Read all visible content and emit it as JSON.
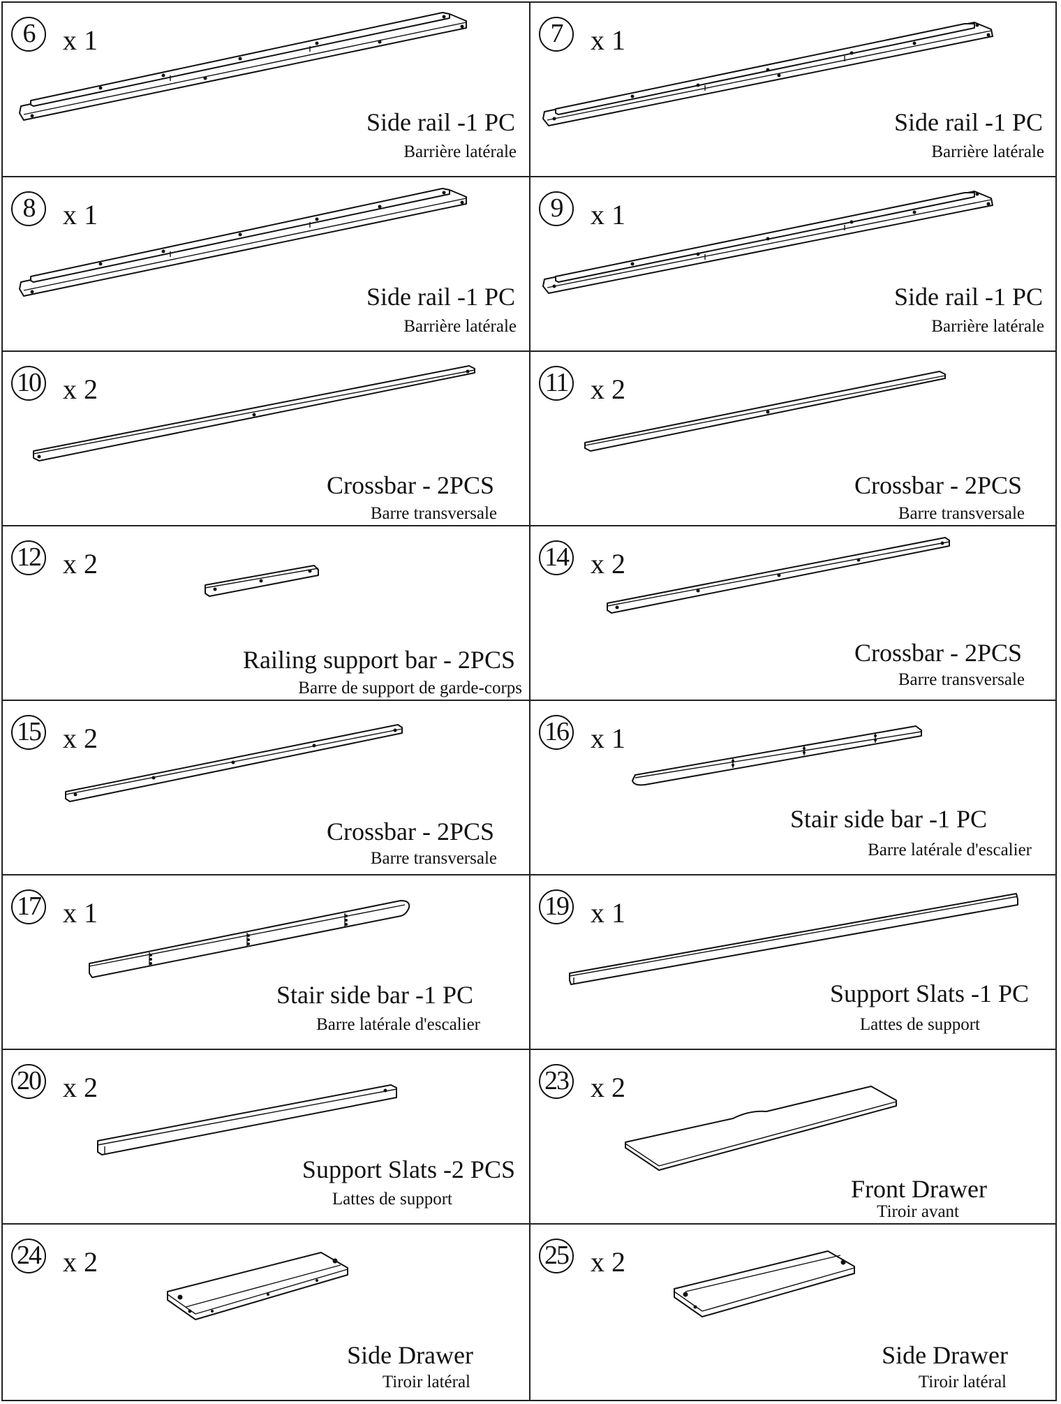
{
  "parts": [
    {
      "num": "6",
      "qty": "x 1",
      "en": "Side rail -1 PC",
      "fr": "Barrière latérale"
    },
    {
      "num": "7",
      "qty": "x 1",
      "en": "Side rail -1 PC",
      "fr": "Barrière latérale"
    },
    {
      "num": "8",
      "qty": "x 1",
      "en": "Side rail -1 PC",
      "fr": "Barrière latérale"
    },
    {
      "num": "9",
      "qty": "x 1",
      "en": "Side rail -1 PC",
      "fr": "Barrière latérale"
    },
    {
      "num": "10",
      "qty": "x 2",
      "en": "Crossbar - 2PCS",
      "fr": "Barre transversale"
    },
    {
      "num": "11",
      "qty": "x 2",
      "en": "Crossbar - 2PCS",
      "fr": "Barre transversale"
    },
    {
      "num": "12",
      "qty": "x 2",
      "en": "Railing support bar - 2PCS",
      "fr": "Barre de support de garde-corps"
    },
    {
      "num": "14",
      "qty": "x 2",
      "en": "Crossbar - 2PCS",
      "fr": "Barre transversale"
    },
    {
      "num": "15",
      "qty": "x 2",
      "en": "Crossbar - 2PCS",
      "fr": "Barre transversale"
    },
    {
      "num": "16",
      "qty": "x 1",
      "en": "Stair side bar -1 PC",
      "fr": "Barre latérale d'escalier"
    },
    {
      "num": "17",
      "qty": "x 1",
      "en": "Stair side bar -1 PC",
      "fr": "Barre latérale d'escalier"
    },
    {
      "num": "19",
      "qty": "x 1",
      "en": "Support Slats -1 PC",
      "fr": "Lattes de support"
    },
    {
      "num": "20",
      "qty": "x 2",
      "en": "Support Slats -2 PCS",
      "fr": "Lattes de support"
    },
    {
      "num": "23",
      "qty": "x 2",
      "en": "Front Drawer",
      "fr": "Tiroir avant"
    },
    {
      "num": "24",
      "qty": "x 2",
      "en": "Side Drawer",
      "fr": "Tiroir latéral"
    },
    {
      "num": "25",
      "qty": "x 2",
      "en": "Side Drawer",
      "fr": "Tiroir latéral"
    }
  ]
}
